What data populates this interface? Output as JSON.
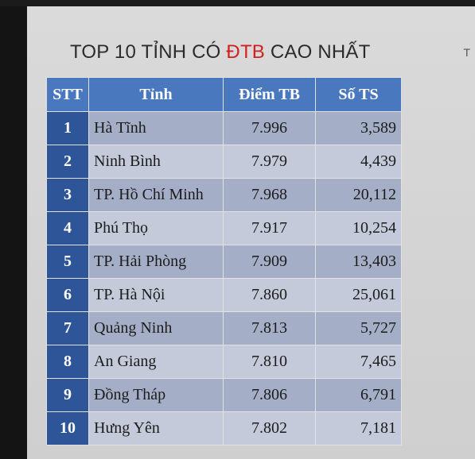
{
  "title": {
    "prefix": "TOP 10 TỈNH CÓ ",
    "highlight": "ĐTB",
    "suffix": " CAO NHẤT"
  },
  "corner_mark": "T",
  "table": {
    "headers": [
      "STT",
      "Tỉnh",
      "Điểm TB",
      "Số TS"
    ],
    "rows": [
      {
        "stt": "1",
        "province": "Hà Tĩnh",
        "score": "7.996",
        "count": "3,589"
      },
      {
        "stt": "2",
        "province": "Ninh Bình",
        "score": "7.979",
        "count": "4,439"
      },
      {
        "stt": "3",
        "province": "TP. Hồ Chí Minh",
        "score": "7.968",
        "count": "20,112"
      },
      {
        "stt": "4",
        "province": "Phú Thọ",
        "score": "7.917",
        "count": "10,254"
      },
      {
        "stt": "5",
        "province": "TP. Hải Phòng",
        "score": "7.909",
        "count": "13,403"
      },
      {
        "stt": "6",
        "province": "TP. Hà Nội",
        "score": "7.860",
        "count": "25,061"
      },
      {
        "stt": "7",
        "province": "Quảng Ninh",
        "score": "7.813",
        "count": "5,727"
      },
      {
        "stt": "8",
        "province": "An Giang",
        "score": "7.810",
        "count": "7,465"
      },
      {
        "stt": "9",
        "province": "Đồng Tháp",
        "score": "7.806",
        "count": "6,791"
      },
      {
        "stt": "10",
        "province": "Hưng Yên",
        "score": "7.802",
        "count": "7,181"
      }
    ]
  },
  "colors": {
    "header_bg": "#4a78bf",
    "stt_bg": "#2e5597",
    "row_odd": "#a4aec6",
    "row_even": "#c4cad9",
    "highlight_text": "#d21f1f"
  }
}
